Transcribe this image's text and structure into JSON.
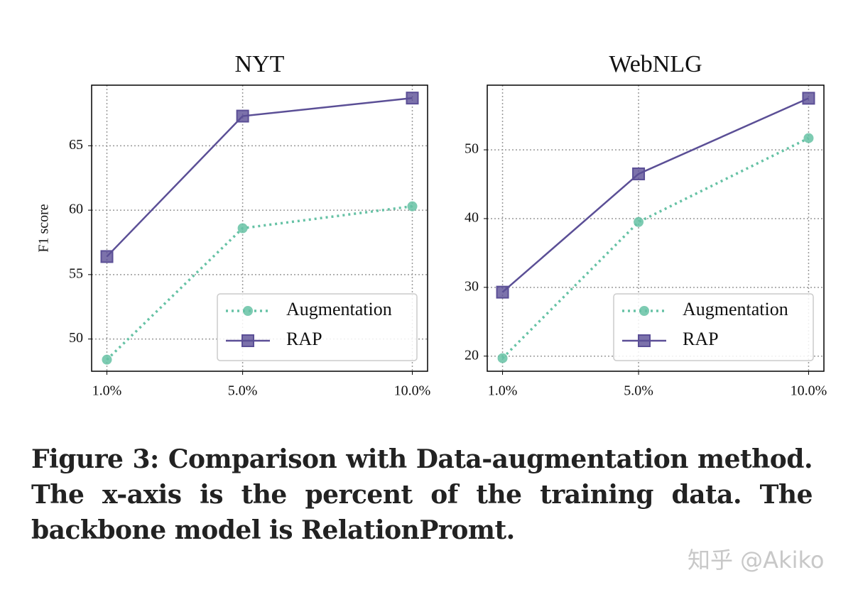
{
  "chart_data": [
    {
      "type": "line",
      "title": "NYT",
      "y_label": "F1 score",
      "x": [
        1,
        5,
        10
      ],
      "xlim": [
        0.55,
        10.45
      ],
      "xticks": [
        {
          "value": 1,
          "label": "1.0%"
        },
        {
          "value": 5,
          "label": "5.0%"
        },
        {
          "value": 10,
          "label": "10.0%"
        }
      ],
      "ylim": [
        47.5,
        69.7
      ],
      "yticks": [
        50,
        55,
        60,
        65
      ],
      "grid": true,
      "legend": "lower right",
      "series": [
        {
          "name": "Augmentation",
          "color": "#66c2a5",
          "style": "dotted",
          "marker": "circle",
          "values": [
            48.4,
            58.6,
            60.3
          ]
        },
        {
          "name": "RAP",
          "color": "#5b4f96",
          "style": "solid",
          "marker": "square",
          "values": [
            56.4,
            67.3,
            68.7
          ]
        }
      ]
    },
    {
      "type": "line",
      "title": "WebNLG",
      "x": [
        1,
        5,
        10
      ],
      "xlim": [
        0.55,
        10.45
      ],
      "xticks": [
        {
          "value": 1,
          "label": "1.0%"
        },
        {
          "value": 5,
          "label": "5.0%"
        },
        {
          "value": 10,
          "label": "10.0%"
        }
      ],
      "ylim": [
        17.8,
        59.4
      ],
      "yticks": [
        20,
        30,
        40,
        50
      ],
      "grid": true,
      "legend": "lower right",
      "series": [
        {
          "name": "Augmentation",
          "color": "#66c2a5",
          "style": "dotted",
          "marker": "circle",
          "values": [
            19.7,
            39.5,
            51.7
          ]
        },
        {
          "name": "RAP",
          "color": "#5b4f96",
          "style": "solid",
          "marker": "square",
          "values": [
            29.3,
            46.5,
            57.5
          ]
        }
      ]
    }
  ],
  "caption": "Figure 3: Comparison with Data-augmentation method. The x-axis is the percent of the training data. The backbone model is RelationPromt.",
  "watermark": "知乎 @Akiko"
}
